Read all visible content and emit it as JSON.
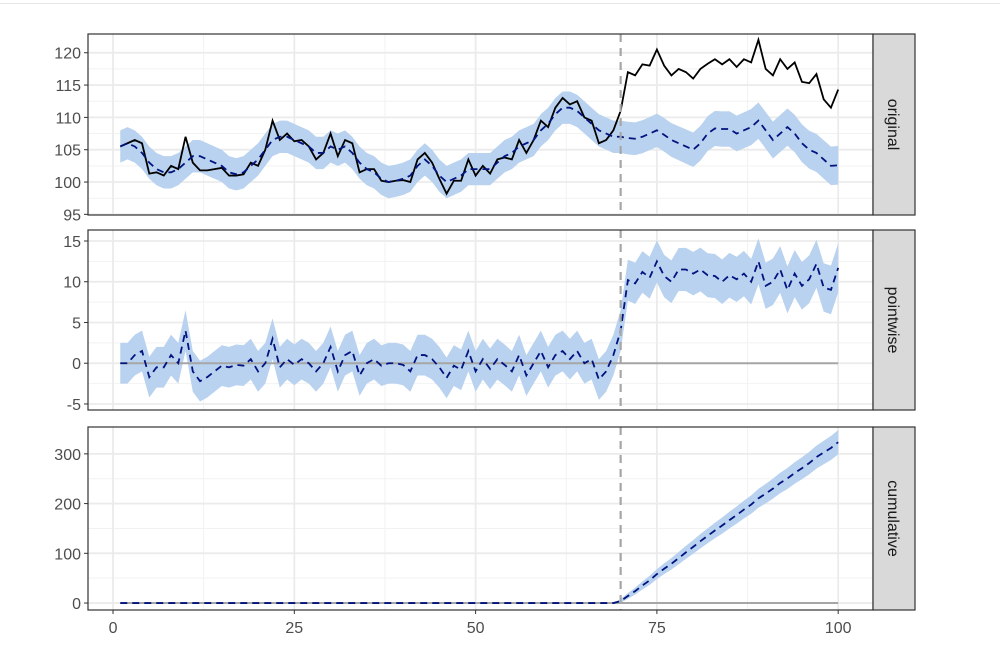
{
  "chart_data": {
    "type": "line",
    "panels": [
      {
        "strip_label": "original",
        "yticks": [
          95,
          100,
          105,
          110,
          115,
          120
        ],
        "ylim": [
          94.9,
          122.9
        ]
      },
      {
        "strip_label": "pointwise",
        "yticks": [
          -5,
          0,
          5,
          10,
          15
        ],
        "ylim": [
          -5.74,
          16.35
        ]
      },
      {
        "strip_label": "cumulative",
        "yticks": [
          0,
          100,
          200,
          300
        ],
        "ylim": [
          -14,
          354
        ]
      }
    ],
    "xticks": [
      0,
      25,
      50,
      75,
      100
    ],
    "xlim": [
      -3.45,
      104.8
    ],
    "intervention_x": 70,
    "x_start": 1,
    "original": [
      105.5,
      106,
      106.5,
      106,
      101.3,
      101.5,
      101,
      102.5,
      102,
      107,
      103,
      101.8,
      101.8,
      102,
      102.2,
      101,
      101,
      101.2,
      103,
      102.5,
      105,
      109.5,
      106.5,
      107.5,
      106.3,
      106.5,
      105.5,
      103.5,
      104.5,
      107.5,
      104,
      106.5,
      106,
      101.5,
      102,
      102,
      100.2,
      100,
      100.2,
      100.3,
      100,
      103.5,
      104.5,
      103,
      100.5,
      98.2,
      100.2,
      100.2,
      103.5,
      101,
      102.5,
      101.3,
      103.5,
      103.8,
      103.5,
      106.5,
      104.5,
      106.5,
      109.5,
      108.5,
      111.5,
      113,
      112,
      112.5,
      110,
      109.5,
      106,
      106.5,
      108,
      111,
      117,
      116.5,
      118.2,
      118,
      120.5,
      118,
      116.5,
      117.5,
      117,
      116,
      117.5,
      118.3,
      119,
      118.2,
      119,
      117.8,
      119,
      118.5,
      122,
      117.5,
      116.5,
      119,
      117.5,
      118.5,
      115.5,
      115.3,
      116.7,
      112.8,
      111.5,
      114.3
    ],
    "predicted": [
      105.5,
      106,
      105.5,
      104.5,
      103,
      102,
      101.5,
      101.5,
      102,
      103,
      104,
      104,
      103.5,
      103,
      102.5,
      101.5,
      101.2,
      101.5,
      102.5,
      103.5,
      105,
      106.5,
      107,
      107,
      106.5,
      106,
      105.5,
      104.5,
      104.5,
      105.5,
      105,
      105.5,
      104.5,
      103,
      102,
      101.5,
      100.5,
      100,
      100.2,
      100.5,
      101,
      102.5,
      103.5,
      102.5,
      101,
      100,
      100.5,
      101,
      102,
      102,
      102,
      102,
      103,
      104,
      104.5,
      105.5,
      106,
      106.5,
      108,
      109,
      110.5,
      111.5,
      111.5,
      111,
      110,
      109,
      108,
      107.5,
      107,
      107,
      106.8,
      106.7,
      107,
      107.5,
      108,
      107.3,
      106.5,
      106,
      105.5,
      105,
      106,
      107.5,
      108.3,
      108.2,
      108.2,
      107.5,
      108,
      108.5,
      109.5,
      108,
      106.5,
      107.5,
      108.5,
      107.5,
      106,
      105,
      104.5,
      103.5,
      102.5,
      102.6
    ],
    "interval_halfwidth_pre": 2.5,
    "interval_halfwidth_post_end": 3.0,
    "colors": {
      "observed": "#000000",
      "predicted": "#00137f",
      "interval": "#b9d2ef",
      "intervention": "#a6a6a6",
      "zero_line": "#a6a6a6",
      "strip": "#d9d9d9"
    }
  }
}
